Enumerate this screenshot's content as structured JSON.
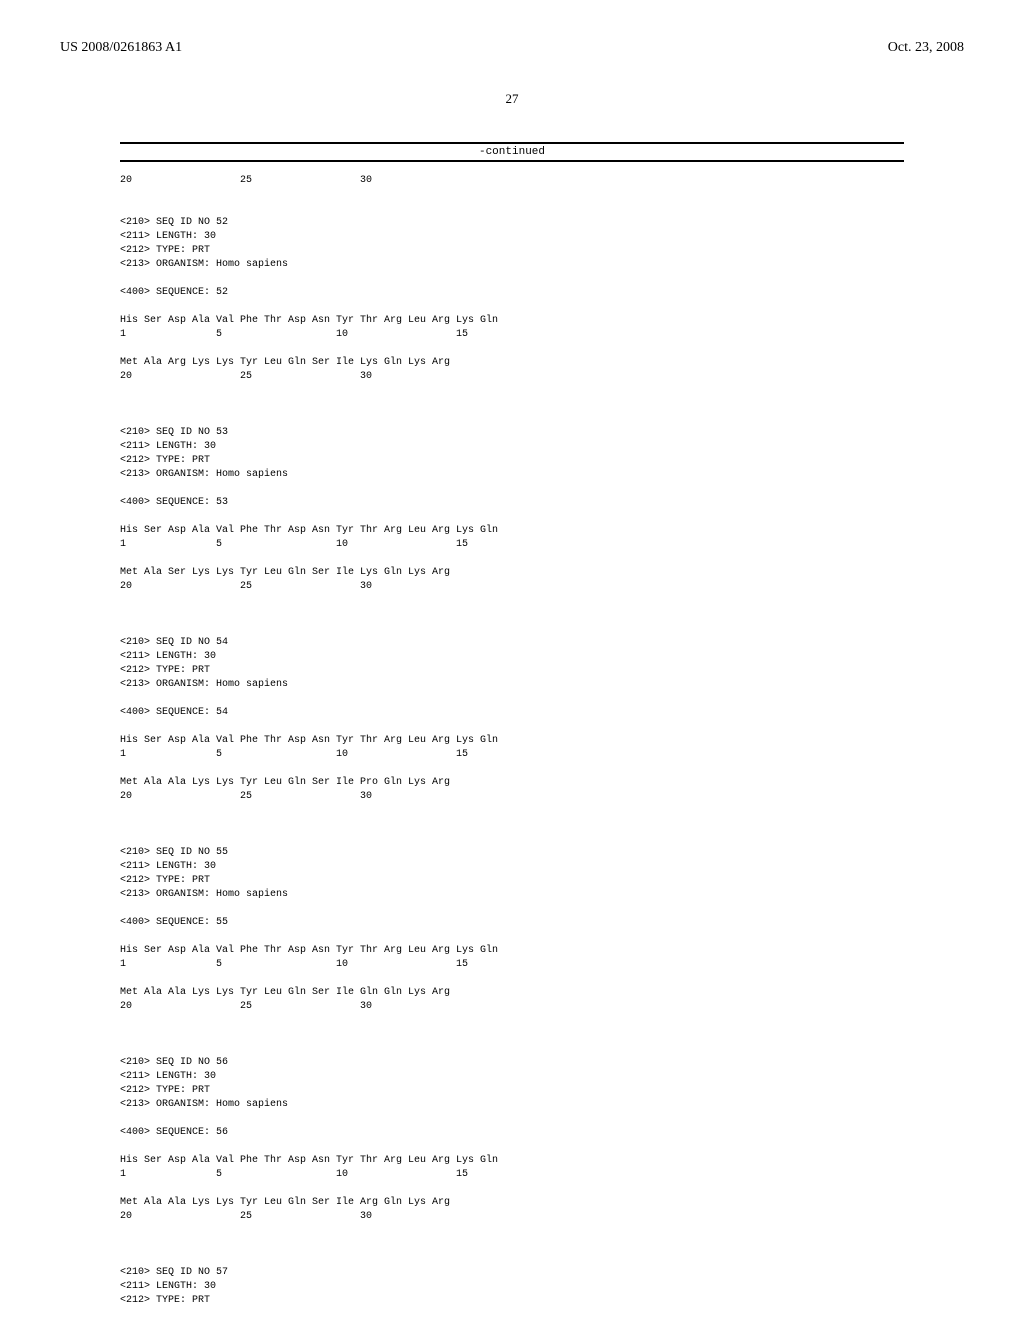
{
  "header": {
    "pub_number": "US 2008/0261863 A1",
    "date": "Oct. 23, 2008"
  },
  "page_number": "27",
  "continued_label": "-continued",
  "first_line": "20                  25                  30",
  "sequences": [
    {
      "id": "52",
      "length": "30",
      "type": "PRT",
      "organism": "Homo sapiens",
      "line1": "His Ser Asp Ala Val Phe Thr Asp Asn Tyr Thr Arg Leu Arg Lys Gln",
      "pos1": "1               5                   10                  15",
      "line2": "Met Ala Arg Lys Lys Tyr Leu Gln Ser Ile Lys Gln Lys Arg",
      "pos2": "20                  25                  30"
    },
    {
      "id": "53",
      "length": "30",
      "type": "PRT",
      "organism": "Homo sapiens",
      "line1": "His Ser Asp Ala Val Phe Thr Asp Asn Tyr Thr Arg Leu Arg Lys Gln",
      "pos1": "1               5                   10                  15",
      "line2": "Met Ala Ser Lys Lys Tyr Leu Gln Ser Ile Lys Gln Lys Arg",
      "pos2": "20                  25                  30"
    },
    {
      "id": "54",
      "length": "30",
      "type": "PRT",
      "organism": "Homo sapiens",
      "line1": "His Ser Asp Ala Val Phe Thr Asp Asn Tyr Thr Arg Leu Arg Lys Gln",
      "pos1": "1               5                   10                  15",
      "line2": "Met Ala Ala Lys Lys Tyr Leu Gln Ser Ile Pro Gln Lys Arg",
      "pos2": "20                  25                  30"
    },
    {
      "id": "55",
      "length": "30",
      "type": "PRT",
      "organism": "Homo sapiens",
      "line1": "His Ser Asp Ala Val Phe Thr Asp Asn Tyr Thr Arg Leu Arg Lys Gln",
      "pos1": "1               5                   10                  15",
      "line2": "Met Ala Ala Lys Lys Tyr Leu Gln Ser Ile Gln Gln Lys Arg",
      "pos2": "20                  25                  30"
    },
    {
      "id": "56",
      "length": "30",
      "type": "PRT",
      "organism": "Homo sapiens",
      "line1": "His Ser Asp Ala Val Phe Thr Asp Asn Tyr Thr Arg Leu Arg Lys Gln",
      "pos1": "1               5                   10                  15",
      "line2": "Met Ala Ala Lys Lys Tyr Leu Gln Ser Ile Arg Gln Lys Arg",
      "pos2": "20                  25                  30"
    }
  ],
  "trailing": {
    "id": "57",
    "length": "30",
    "type": "PRT"
  },
  "labels": {
    "seq_id": "<210> SEQ ID NO ",
    "length": "<211> LENGTH: ",
    "type": "<212> TYPE: ",
    "organism": "<213> ORGANISM: ",
    "sequence": "<400> SEQUENCE: "
  }
}
